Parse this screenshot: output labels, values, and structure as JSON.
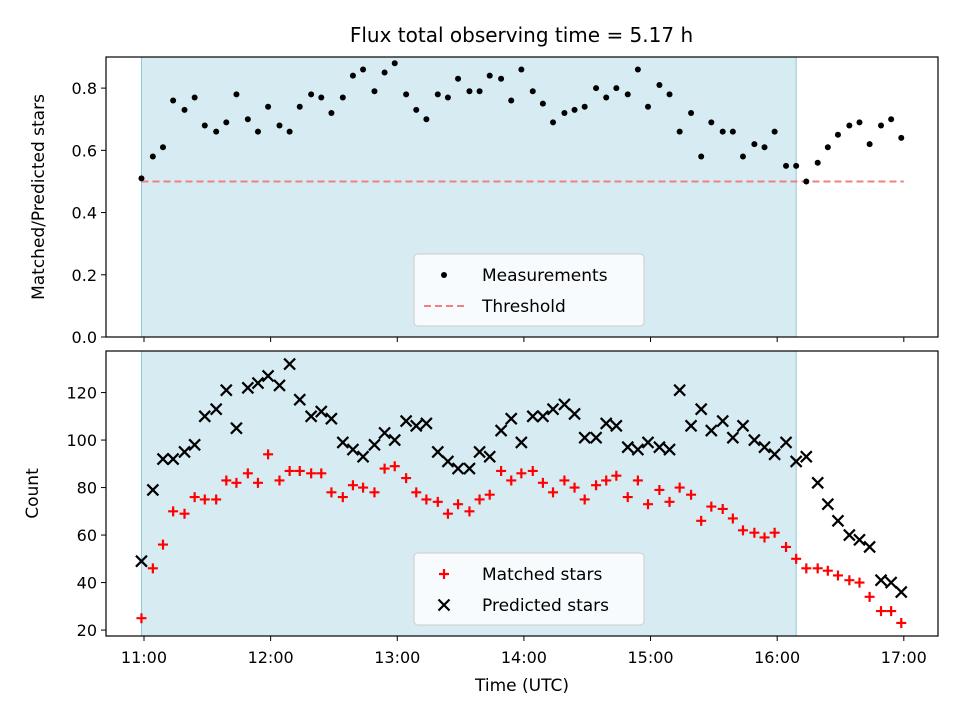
{
  "figure": {
    "title": "Flux total observing time = 5.17 h"
  },
  "colors": {
    "shade": "#add8e6",
    "measurement": "#000000",
    "threshold": "#f08080",
    "matched": "#ff0000",
    "predicted": "#000000"
  },
  "chart_data": [
    {
      "type": "scatter",
      "ylabel": "Matched/Predicted stars",
      "xlabel": "",
      "xlim_hours": [
        10.7,
        17.27
      ],
      "ylim": [
        0,
        0.9
      ],
      "yticks": [
        "0.0",
        "0.2",
        "0.4",
        "0.6",
        "0.8"
      ],
      "ytick_values": [
        0,
        0.2,
        0.4,
        0.6,
        0.8
      ],
      "grid": false,
      "legend": {
        "placement": "lower-center",
        "entries": [
          "Measurements",
          "Threshold"
        ]
      },
      "shaded_span_hours": [
        10.98,
        16.15
      ],
      "threshold": {
        "name": "Threshold",
        "y": 0.5,
        "x_hours": [
          10.98,
          17.0
        ]
      },
      "series": [
        {
          "name": "Measurements",
          "marker": "dot",
          "x_hours": [
            10.98,
            11.07,
            11.15,
            11.23,
            11.32,
            11.4,
            11.48,
            11.57,
            11.65,
            11.73,
            11.82,
            11.9,
            11.98,
            12.07,
            12.15,
            12.23,
            12.32,
            12.4,
            12.48,
            12.57,
            12.65,
            12.73,
            12.82,
            12.9,
            12.98,
            13.07,
            13.15,
            13.23,
            13.32,
            13.4,
            13.48,
            13.57,
            13.65,
            13.73,
            13.82,
            13.9,
            13.98,
            14.07,
            14.15,
            14.23,
            14.32,
            14.4,
            14.48,
            14.57,
            14.65,
            14.73,
            14.82,
            14.9,
            14.98,
            15.07,
            15.15,
            15.23,
            15.32,
            15.4,
            15.48,
            15.57,
            15.65,
            15.73,
            15.82,
            15.9,
            15.98,
            16.07,
            16.15,
            16.23,
            16.32,
            16.4,
            16.48,
            16.57,
            16.65,
            16.73,
            16.82,
            16.9,
            16.98
          ],
          "y": [
            0.51,
            0.58,
            0.61,
            0.76,
            0.73,
            0.77,
            0.68,
            0.66,
            0.69,
            0.78,
            0.7,
            0.66,
            0.74,
            0.68,
            0.66,
            0.74,
            0.78,
            0.77,
            0.72,
            0.77,
            0.84,
            0.86,
            0.79,
            0.85,
            0.88,
            0.78,
            0.73,
            0.7,
            0.78,
            0.77,
            0.83,
            0.79,
            0.79,
            0.84,
            0.83,
            0.76,
            0.86,
            0.79,
            0.75,
            0.69,
            0.72,
            0.73,
            0.74,
            0.8,
            0.77,
            0.8,
            0.78,
            0.86,
            0.74,
            0.81,
            0.78,
            0.66,
            0.72,
            0.58,
            0.69,
            0.66,
            0.66,
            0.58,
            0.62,
            0.61,
            0.66,
            0.55,
            0.55,
            0.5,
            0.56,
            0.61,
            0.65,
            0.68,
            0.69,
            0.62,
            0.68,
            0.7,
            0.64
          ]
        }
      ]
    },
    {
      "type": "scatter",
      "xlabel": "Time (UTC)",
      "ylabel": "Count",
      "xlim_hours": [
        10.7,
        17.27
      ],
      "ylim": [
        17.5,
        137.5
      ],
      "xticks": [
        "11:00",
        "12:00",
        "13:00",
        "14:00",
        "15:00",
        "16:00",
        "17:00"
      ],
      "xtick_hours": [
        11,
        12,
        13,
        14,
        15,
        16,
        17
      ],
      "yticks": [
        "20",
        "40",
        "60",
        "80",
        "100",
        "120"
      ],
      "ytick_values": [
        20,
        40,
        60,
        80,
        100,
        120
      ],
      "grid": false,
      "legend": {
        "placement": "lower-center",
        "entries": [
          "Matched stars",
          "Predicted stars"
        ]
      },
      "shaded_span_hours": [
        10.98,
        16.15
      ],
      "series": [
        {
          "name": "Matched stars",
          "marker": "plus",
          "x_hours": [
            10.98,
            11.07,
            11.15,
            11.23,
            11.32,
            11.4,
            11.48,
            11.57,
            11.65,
            11.73,
            11.82,
            11.9,
            11.98,
            12.07,
            12.15,
            12.23,
            12.32,
            12.4,
            12.48,
            12.57,
            12.65,
            12.73,
            12.82,
            12.9,
            12.98,
            13.07,
            13.15,
            13.23,
            13.32,
            13.4,
            13.48,
            13.57,
            13.65,
            13.73,
            13.82,
            13.9,
            13.98,
            14.07,
            14.15,
            14.23,
            14.32,
            14.4,
            14.48,
            14.57,
            14.65,
            14.73,
            14.82,
            14.9,
            14.98,
            15.07,
            15.15,
            15.23,
            15.32,
            15.4,
            15.48,
            15.57,
            15.65,
            15.73,
            15.82,
            15.9,
            15.98,
            16.07,
            16.15,
            16.23,
            16.32,
            16.4,
            16.48,
            16.57,
            16.65,
            16.73,
            16.82,
            16.9,
            16.98
          ],
          "y": [
            25,
            46,
            56,
            70,
            69,
            76,
            75,
            75,
            83,
            82,
            86,
            82,
            94,
            83,
            87,
            87,
            86,
            86,
            78,
            76,
            81,
            80,
            78,
            88,
            89,
            84,
            78,
            75,
            74,
            69,
            73,
            70,
            75,
            77,
            87,
            83,
            86,
            87,
            82,
            78,
            83,
            80,
            75,
            81,
            83,
            85,
            76,
            83,
            73,
            79,
            74,
            80,
            77,
            66,
            72,
            71,
            67,
            62,
            61,
            59,
            61,
            55,
            50,
            46,
            46,
            45,
            43,
            41,
            40,
            34,
            28,
            28,
            23
          ]
        },
        {
          "name": "Predicted stars",
          "marker": "x",
          "x_hours": [
            10.98,
            11.07,
            11.15,
            11.23,
            11.32,
            11.4,
            11.48,
            11.57,
            11.65,
            11.73,
            11.82,
            11.9,
            11.98,
            12.07,
            12.15,
            12.23,
            12.32,
            12.4,
            12.48,
            12.57,
            12.65,
            12.73,
            12.82,
            12.9,
            12.98,
            13.07,
            13.15,
            13.23,
            13.32,
            13.4,
            13.48,
            13.57,
            13.65,
            13.73,
            13.82,
            13.9,
            13.98,
            14.07,
            14.15,
            14.23,
            14.32,
            14.4,
            14.48,
            14.57,
            14.65,
            14.73,
            14.82,
            14.9,
            14.98,
            15.07,
            15.15,
            15.23,
            15.32,
            15.4,
            15.48,
            15.57,
            15.65,
            15.73,
            15.82,
            15.9,
            15.98,
            16.07,
            16.15,
            16.23,
            16.32,
            16.4,
            16.48,
            16.57,
            16.65,
            16.73,
            16.82,
            16.9,
            16.98
          ],
          "y": [
            49,
            79,
            92,
            92,
            95,
            98,
            110,
            113,
            121,
            105,
            122,
            124,
            127,
            123,
            132,
            117,
            110,
            112,
            109,
            99,
            96,
            93,
            98,
            103,
            100,
            108,
            106,
            107,
            95,
            91,
            88,
            88,
            95,
            93,
            104,
            109,
            99,
            110,
            110,
            113,
            115,
            111,
            101,
            101,
            107,
            106,
            97,
            96,
            99,
            97,
            96,
            121,
            106,
            113,
            104,
            108,
            101,
            106,
            100,
            97,
            94,
            99,
            91,
            93,
            82,
            73,
            66,
            60,
            58,
            55,
            41,
            40,
            36
          ]
        }
      ]
    }
  ]
}
